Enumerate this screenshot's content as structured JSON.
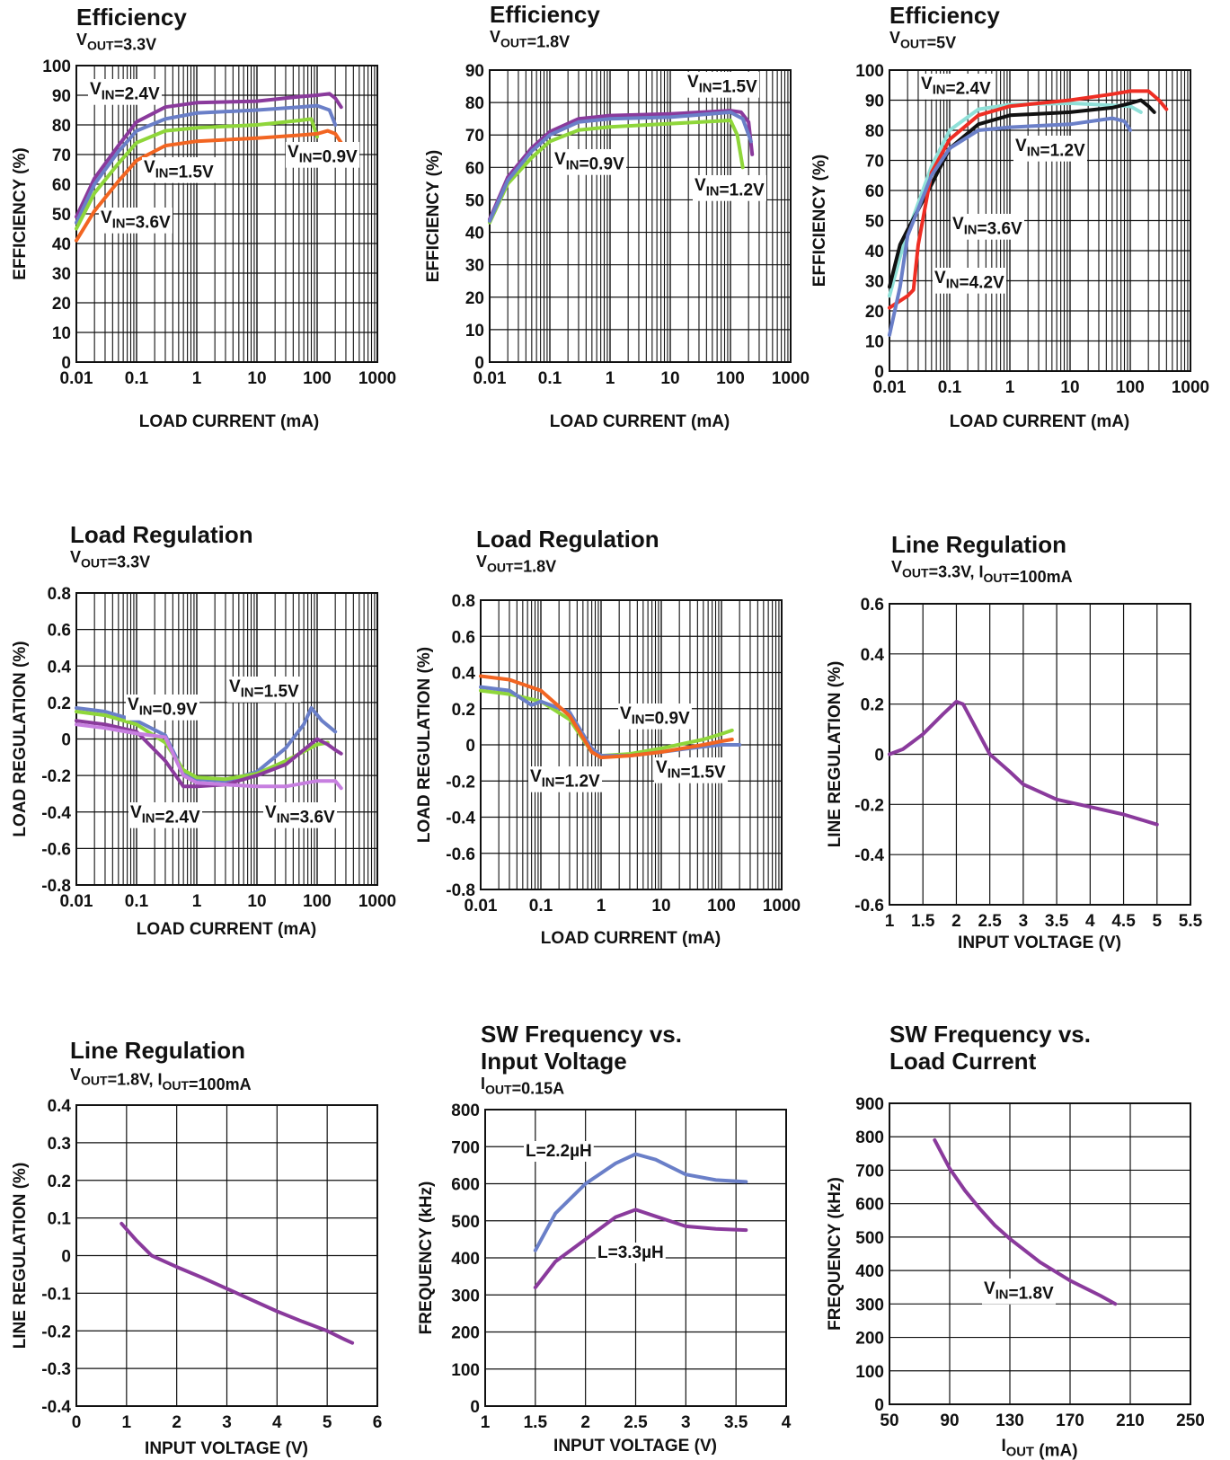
{
  "chart_data": [
    {
      "id": "c1",
      "type": "line",
      "title": "Efficiency",
      "subtitle": "V_{OUT}=3.3V",
      "xlabel": "LOAD CURRENT (mA)",
      "ylabel": "EFFICIENCY (%)",
      "xscale": "log",
      "xlim": [
        0.01,
        1000
      ],
      "ylim": [
        0,
        100
      ],
      "xticks": [
        "0.01",
        "0.1",
        "1",
        "10",
        "100",
        "1000"
      ],
      "yticks": [
        "0",
        "10",
        "20",
        "30",
        "40",
        "50",
        "60",
        "70",
        "80",
        "90",
        "100"
      ],
      "grid": true,
      "series": [
        {
          "name": "V_{IN}=2.4V",
          "color": "#8a3a9c",
          "x": [
            0.01,
            0.02,
            0.05,
            0.1,
            0.3,
            1,
            10,
            50,
            100,
            160,
            200,
            250
          ],
          "y": [
            49,
            62,
            73,
            81,
            86,
            87.5,
            88,
            89.5,
            90,
            90.5,
            89,
            86
          ]
        },
        {
          "name": "V_{IN}=3.6V",
          "color": "#6a7fc8",
          "x": [
            0.01,
            0.02,
            0.05,
            0.1,
            0.3,
            1,
            10,
            50,
            100,
            160,
            200
          ],
          "y": [
            47,
            60,
            71,
            78,
            82,
            84,
            85,
            86,
            86.5,
            85,
            80
          ]
        },
        {
          "name": "V_{IN}=1.5V",
          "color": "#8fd63a",
          "x": [
            0.01,
            0.02,
            0.05,
            0.1,
            0.3,
            1,
            10,
            50,
            80,
            100
          ],
          "y": [
            45,
            57,
            67,
            74,
            78,
            79,
            80,
            81.5,
            82,
            76
          ]
        },
        {
          "name": "V_{IN}=0.9V",
          "color": "#f26522",
          "x": [
            0.01,
            0.02,
            0.05,
            0.1,
            0.3,
            1,
            10,
            50,
            100,
            150,
            200,
            250
          ],
          "y": [
            41,
            51,
            61,
            68,
            73,
            74.5,
            75.5,
            76.5,
            77,
            78,
            77,
            74
          ]
        }
      ],
      "annotations": [
        "V_{IN}=2.4V",
        "V_{IN}=1.5V",
        "V_{IN}=3.6V",
        "V_{IN}=0.9V"
      ]
    },
    {
      "id": "c2",
      "type": "line",
      "title": "Efficiency",
      "subtitle": "V_{OUT}=1.8V",
      "xlabel": "LOAD CURRENT (mA)",
      "ylabel": "EFFICIENCY (%)",
      "xscale": "log",
      "xlim": [
        0.01,
        1000
      ],
      "ylim": [
        0,
        90
      ],
      "xticks": [
        "0.01",
        "0.1",
        "1",
        "10",
        "100",
        "1000"
      ],
      "yticks": [
        "0",
        "10",
        "20",
        "30",
        "40",
        "50",
        "60",
        "70",
        "80",
        "90"
      ],
      "grid": true,
      "series": [
        {
          "name": "V_{IN}=1.5V",
          "color": "#8a3a9c",
          "x": [
            0.01,
            0.02,
            0.05,
            0.1,
            0.3,
            1,
            10,
            100,
            150,
            200,
            230
          ],
          "y": [
            44,
            57,
            66,
            71,
            75,
            76,
            76.5,
            77.5,
            77,
            74,
            64
          ]
        },
        {
          "name": "V_{IN}=0.9V",
          "color": "#8fd63a",
          "x": [
            0.01,
            0.02,
            0.05,
            0.1,
            0.3,
            1,
            10,
            100,
            130,
            160
          ],
          "y": [
            43,
            55,
            63,
            68,
            71.5,
            72.5,
            73.5,
            74.5,
            70,
            60
          ]
        },
        {
          "name": "V_{IN}=1.2V",
          "color": "#6a7fc8",
          "x": [
            0.01,
            0.02,
            0.05,
            0.1,
            0.3,
            1,
            10,
            100,
            160,
            220
          ],
          "y": [
            43.5,
            56,
            65,
            70,
            74,
            75,
            75.5,
            77,
            75,
            68
          ]
        }
      ],
      "annotations": [
        "V_{IN}=1.5V",
        "V_{IN}=0.9V",
        "V_{IN}=1.2V"
      ]
    },
    {
      "id": "c3",
      "type": "line",
      "title": "Efficiency",
      "subtitle": "V_{OUT}=5V",
      "xlabel": "LOAD CURRENT (mA)",
      "ylabel": "EFFICIENCY (%)",
      "xscale": "log",
      "xlim": [
        0.01,
        1000
      ],
      "ylim": [
        0,
        100
      ],
      "xticks": [
        "0.01",
        "0.1",
        "1",
        "10",
        "100",
        "1000"
      ],
      "yticks": [
        "0",
        "10",
        "20",
        "30",
        "40",
        "50",
        "60",
        "70",
        "80",
        "90",
        "100"
      ],
      "grid": true,
      "series": [
        {
          "name": "V_{IN}=2.4V",
          "color": "#8fe0d8",
          "x": [
            0.01,
            0.015,
            0.02,
            0.05,
            0.1,
            0.3,
            1,
            10,
            100,
            150
          ],
          "y": [
            25,
            38,
            46,
            68,
            80,
            87,
            88.5,
            89,
            88,
            86
          ]
        },
        {
          "name": "V_{IN}=3.6V",
          "color": "#111111",
          "x": [
            0.01,
            0.015,
            0.02,
            0.05,
            0.1,
            0.3,
            1,
            10,
            50,
            100,
            150,
            200,
            250
          ],
          "y": [
            28,
            42,
            47,
            62,
            74,
            82,
            85,
            86,
            87.5,
            89,
            90,
            88,
            86
          ]
        },
        {
          "name": "V_{IN}=4.2V",
          "color": "#ee2e24",
          "x": [
            0.01,
            0.02,
            0.025,
            0.03,
            0.05,
            0.1,
            0.3,
            1,
            10,
            50,
            100,
            200,
            300,
            400
          ],
          "y": [
            21,
            25,
            27,
            42,
            66,
            77,
            85,
            88,
            90,
            92,
            93,
            93,
            90,
            87
          ]
        },
        {
          "name": "V_{IN}=1.2V",
          "color": "#6a7fc8",
          "x": [
            0.01,
            0.015,
            0.02,
            0.05,
            0.1,
            0.3,
            1,
            10,
            50,
            80,
            100
          ],
          "y": [
            12,
            28,
            45,
            65,
            74,
            80,
            81,
            82,
            84,
            83,
            80
          ]
        }
      ],
      "annotations": [
        "V_{IN}=2.4V",
        "V_{IN}=1.2V",
        "V_{IN}=3.6V",
        "V_{IN}=4.2V"
      ]
    },
    {
      "id": "c4",
      "type": "line",
      "title": "Load Regulation",
      "subtitle": "V_{OUT}=3.3V",
      "xlabel": "LOAD CURRENT (mA)",
      "ylabel": "LOAD REGULATION (%)",
      "xscale": "log",
      "xlim": [
        0.01,
        1000
      ],
      "ylim": [
        -0.8,
        0.8
      ],
      "xticks": [
        "0.01",
        "0.1",
        "1",
        "10",
        "100",
        "1000"
      ],
      "yticks": [
        "-0.8",
        "-0.6",
        "-0.4",
        "-0.2",
        "0",
        "0.2",
        "0.4",
        "0.6",
        "0.8"
      ],
      "grid": true,
      "series": [
        {
          "name": "V_{IN}=1.5V",
          "color": "#6a7fc8",
          "x": [
            0.01,
            0.03,
            0.1,
            0.3,
            0.6,
            1,
            3,
            10,
            30,
            60,
            80,
            120,
            200
          ],
          "y": [
            0.17,
            0.15,
            0.1,
            0.02,
            -0.18,
            -0.22,
            -0.23,
            -0.18,
            -0.05,
            0.08,
            0.17,
            0.1,
            0.04
          ]
        },
        {
          "name": "V_{IN}=0.9V",
          "color": "#8fd63a",
          "x": [
            0.01,
            0.03,
            0.1,
            0.3,
            0.6,
            1,
            3,
            10,
            30,
            100,
            150
          ],
          "y": [
            0.15,
            0.13,
            0.08,
            -0.02,
            -0.17,
            -0.21,
            -0.22,
            -0.19,
            -0.12,
            -0.03,
            -0.02
          ]
        },
        {
          "name": "V_{IN}=2.4V",
          "color": "#8a3a9c",
          "x": [
            0.01,
            0.03,
            0.1,
            0.3,
            0.6,
            1,
            3,
            10,
            30,
            100,
            150,
            200,
            250
          ],
          "y": [
            0.1,
            0.08,
            0.04,
            -0.12,
            -0.26,
            -0.26,
            -0.25,
            -0.2,
            -0.14,
            0.0,
            -0.03,
            -0.06,
            -0.08
          ]
        },
        {
          "name": "V_{IN}=3.6V",
          "color": "#c77fe0",
          "x": [
            0.01,
            0.03,
            0.1,
            0.3,
            0.6,
            1,
            3,
            10,
            30,
            100,
            200,
            250
          ],
          "y": [
            0.08,
            0.06,
            0.03,
            0.01,
            -0.2,
            -0.24,
            -0.25,
            -0.26,
            -0.26,
            -0.23,
            -0.23,
            -0.27
          ]
        }
      ],
      "annotations": [
        "V_{IN}=0.9V",
        "V_{IN}=1.5V",
        "V_{IN}=2.4V",
        "V_{IN}=3.6V"
      ]
    },
    {
      "id": "c5",
      "type": "line",
      "title": "Load Regulation",
      "subtitle": "V_{OUT}=1.8V",
      "xlabel": "LOAD CURRENT (mA)",
      "ylabel": "LOAD REGULATION (%)",
      "xscale": "log",
      "xlim": [
        0.01,
        1000
      ],
      "ylim": [
        -0.8,
        0.8
      ],
      "xticks": [
        "0.01",
        "0.1",
        "1",
        "10",
        "100",
        "1000"
      ],
      "yticks": [
        "-0.8",
        "-0.6",
        "-0.4",
        "-0.2",
        "0",
        "0.2",
        "0.4",
        "0.6",
        "0.8"
      ],
      "grid": true,
      "series": [
        {
          "name": "V_{IN}=0.9V",
          "color": "#8fd63a",
          "x": [
            0.01,
            0.03,
            0.1,
            0.3,
            0.7,
            1,
            3,
            10,
            50,
            100,
            150
          ],
          "y": [
            0.3,
            0.28,
            0.24,
            0.14,
            -0.04,
            -0.06,
            -0.05,
            -0.02,
            0.03,
            0.06,
            0.08
          ]
        },
        {
          "name": "V_{IN}=1.5V",
          "color": "#6a7fc8",
          "x": [
            0.01,
            0.03,
            0.07,
            0.1,
            0.3,
            0.7,
            1,
            3,
            10,
            50,
            100,
            200
          ],
          "y": [
            0.32,
            0.3,
            0.22,
            0.24,
            0.18,
            -0.02,
            -0.06,
            -0.06,
            -0.04,
            -0.01,
            0.0,
            0.0
          ]
        },
        {
          "name": "V_{IN}=1.2V",
          "color": "#f26522",
          "x": [
            0.01,
            0.03,
            0.1,
            0.3,
            0.7,
            1,
            3,
            10,
            50,
            100,
            150
          ],
          "y": [
            0.38,
            0.36,
            0.3,
            0.16,
            -0.04,
            -0.07,
            -0.06,
            -0.04,
            0.0,
            0.02,
            0.03
          ]
        }
      ],
      "annotations": [
        "V_{IN}=0.9V",
        "V_{IN}=1.2V",
        "V_{IN}=1.5V"
      ]
    },
    {
      "id": "c6",
      "type": "line",
      "title": "Line Regulation",
      "subtitle": "V_{OUT}=3.3V, I_{OUT}=100mA",
      "xlabel": "INPUT VOLTAGE (V)",
      "ylabel": "LINE REGULATION (%)",
      "xscale": "linear",
      "xlim": [
        1,
        5.5
      ],
      "ylim": [
        -0.6,
        0.6
      ],
      "xticks": [
        "1",
        "1.5",
        "2",
        "2.5",
        "3",
        "3.5",
        "4",
        "4.5",
        "5",
        "5.5"
      ],
      "yticks": [
        "-0.6",
        "-0.4",
        "-0.2",
        "0",
        "0.2",
        "0.4",
        "0.6"
      ],
      "grid": true,
      "series": [
        {
          "name": "",
          "color": "#8a3a9c",
          "x": [
            1,
            1.2,
            1.5,
            1.8,
            2.0,
            2.1,
            2.3,
            2.5,
            2.8,
            3.0,
            3.5,
            4.0,
            4.5,
            5.0
          ],
          "y": [
            0.0,
            0.02,
            0.08,
            0.16,
            0.21,
            0.2,
            0.1,
            0.0,
            -0.07,
            -0.12,
            -0.18,
            -0.21,
            -0.24,
            -0.28
          ]
        }
      ],
      "annotations": []
    },
    {
      "id": "c7",
      "type": "line",
      "title": "Line Regulation",
      "subtitle": "V_{OUT}=1.8V, I_{OUT}=100mA",
      "xlabel": "INPUT VOLTAGE (V)",
      "ylabel": "LINE REGULATION (%)",
      "xscale": "linear",
      "xlim": [
        0,
        6
      ],
      "ylim": [
        -0.4,
        0.4
      ],
      "xticks": [
        "0",
        "1",
        "2",
        "3",
        "4",
        "5",
        "6"
      ],
      "yticks": [
        "-0.4",
        "-0.3",
        "-0.2",
        "-0.1",
        "0",
        "0.1",
        "0.2",
        "0.3",
        "0.4"
      ],
      "grid": true,
      "series": [
        {
          "name": "",
          "color": "#8a3a9c",
          "x": [
            0.9,
            1.2,
            1.5,
            2.0,
            2.5,
            3.0,
            3.5,
            4.0,
            4.5,
            5.0,
            5.3,
            5.5
          ],
          "y": [
            0.085,
            0.04,
            0.0,
            -0.03,
            -0.058,
            -0.088,
            -0.118,
            -0.148,
            -0.175,
            -0.2,
            -0.22,
            -0.232
          ]
        }
      ],
      "annotations": []
    },
    {
      "id": "c8",
      "type": "line",
      "title": "SW Frequency vs.",
      "title2": "Input Voltage",
      "subtitle": "I_{OUT}=0.15A",
      "xlabel": "INPUT VOLTAGE (V)",
      "ylabel": "FREQUENCY (kHz)",
      "xscale": "linear",
      "xlim": [
        1,
        4
      ],
      "ylim": [
        0,
        800
      ],
      "xticks": [
        "1",
        "1.5",
        "2",
        "2.5",
        "3",
        "3.5",
        "4"
      ],
      "yticks": [
        "0",
        "100",
        "200",
        "300",
        "400",
        "500",
        "600",
        "700",
        "800"
      ],
      "grid": true,
      "series": [
        {
          "name": "L=2.2µH",
          "color": "#6a7fc8",
          "x": [
            1.5,
            1.7,
            2.0,
            2.3,
            2.5,
            2.7,
            3.0,
            3.3,
            3.6
          ],
          "y": [
            420,
            520,
            600,
            655,
            680,
            665,
            625,
            610,
            605
          ]
        },
        {
          "name": "L=3.3µH",
          "color": "#8a3a9c",
          "x": [
            1.5,
            1.7,
            2.0,
            2.3,
            2.5,
            2.7,
            3.0,
            3.3,
            3.6
          ],
          "y": [
            320,
            390,
            450,
            510,
            530,
            512,
            485,
            478,
            475
          ]
        }
      ],
      "annotations": [
        "L=2.2µH",
        "L=3.3µH"
      ]
    },
    {
      "id": "c9",
      "type": "line",
      "title": "SW Frequency vs.",
      "title2": "Load Current",
      "xlabel": "I_{OUT} (mA)",
      "ylabel": "FREQUENCY (kHz)",
      "xscale": "linear",
      "xlim": [
        50,
        250
      ],
      "ylim": [
        0,
        900
      ],
      "xticks": [
        "50",
        "90",
        "130",
        "170",
        "210",
        "250"
      ],
      "yticks": [
        "0",
        "100",
        "200",
        "300",
        "400",
        "500",
        "600",
        "700",
        "800",
        "900"
      ],
      "grid": true,
      "series": [
        {
          "name": "V_{IN}=1.8V",
          "color": "#8a3a9c",
          "x": [
            80,
            90,
            100,
            110,
            120,
            130,
            150,
            170,
            190,
            200
          ],
          "y": [
            790,
            705,
            640,
            585,
            535,
            495,
            425,
            370,
            325,
            300
          ]
        }
      ],
      "annotations": [
        "V_{IN}=1.8V"
      ]
    }
  ]
}
